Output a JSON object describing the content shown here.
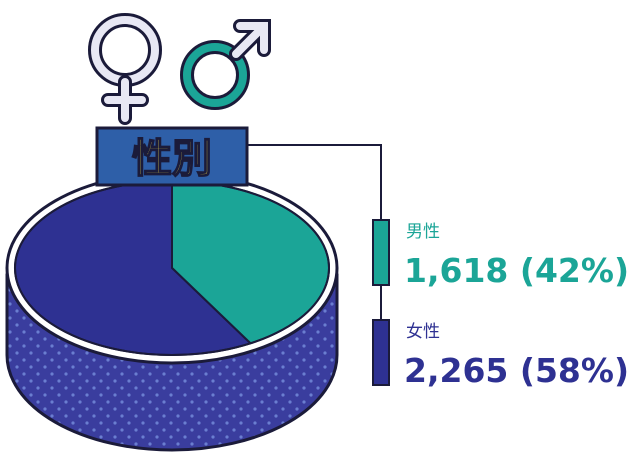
{
  "chart_data": {
    "type": "pie",
    "title": "性別",
    "categories": [
      "男性",
      "女性"
    ],
    "values": [
      1618,
      2265
    ],
    "value_labels": [
      "1,618 (42%)",
      "2,265 (58%)"
    ],
    "colors": [
      "#1ba597",
      "#2e3192"
    ]
  }
}
